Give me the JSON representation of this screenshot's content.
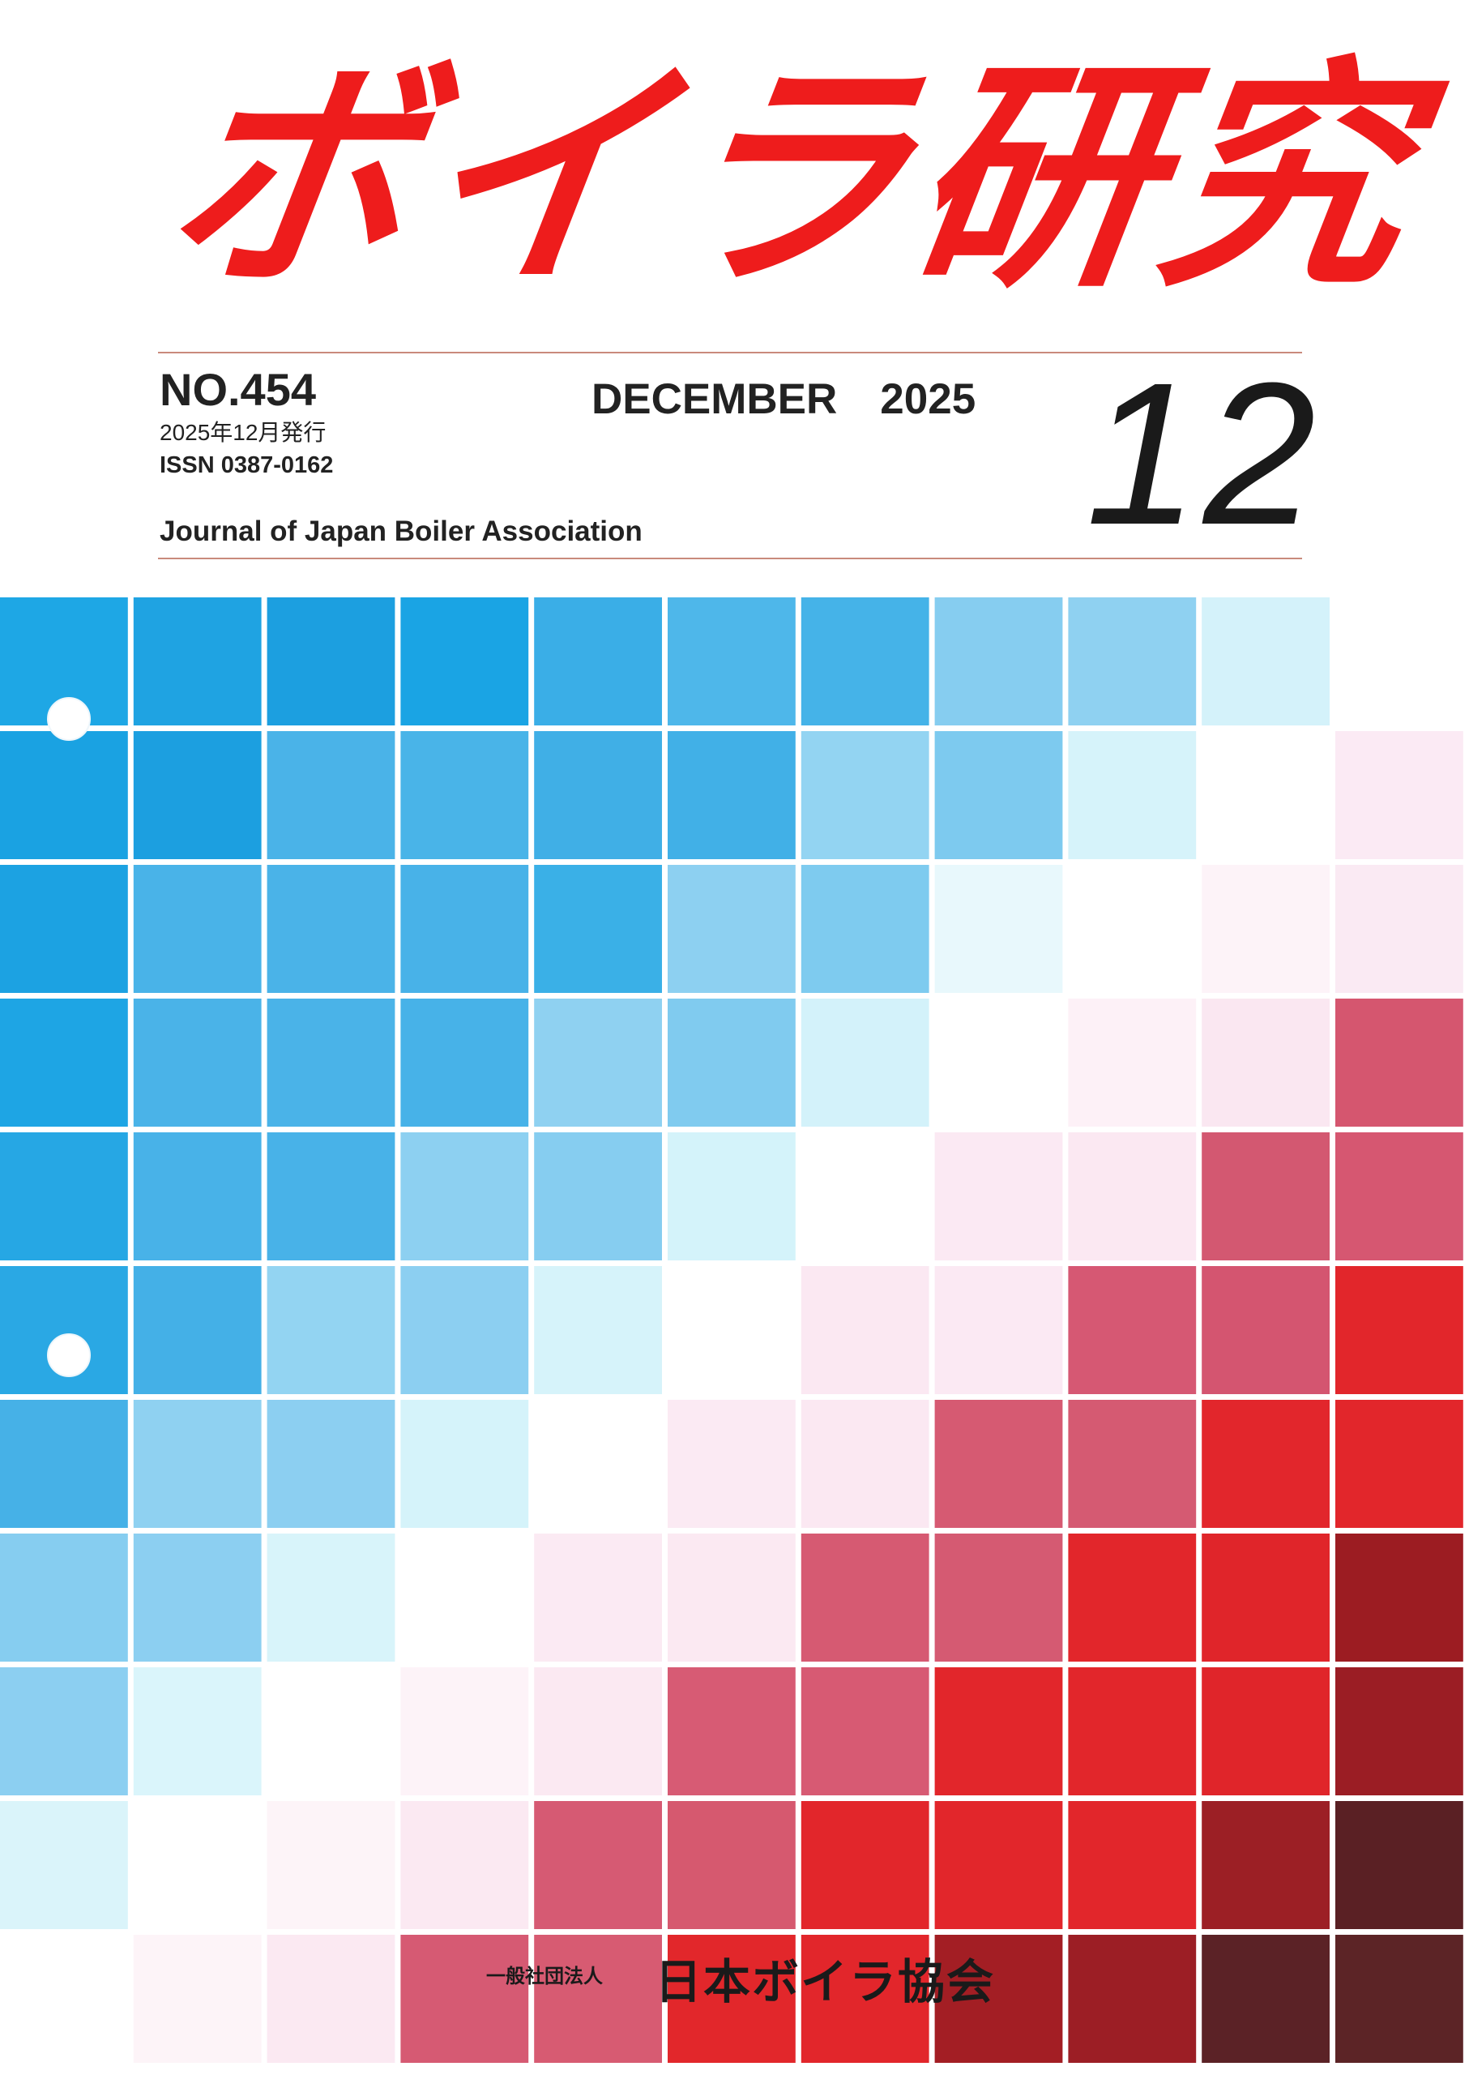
{
  "cover": {
    "title": "ボイラ研究",
    "issue_number": "NO.454",
    "issue_date_jp": "2025年12月発行",
    "issn": "ISSN 0387-0162",
    "journal_name": "Journal of Japan Boiler Association",
    "issue_month_year": "DECEMBER　2025",
    "issue_month_big": "12"
  },
  "publisher": {
    "label": "一般社団法人",
    "name": "日本ボイラ協会"
  },
  "colors": {
    "title_red": "#ee1c1c",
    "rule": "#c98a7c",
    "text_dark": "#222222"
  },
  "mosaic": {
    "rows": [
      [
        "#1ea7e5",
        "#1fa3e2",
        "#1c9fe0",
        "#1aa4e4",
        "#3aaee7",
        "#4eb7ea",
        "#45b3e8",
        "#86cdf0",
        "#8fd1f1",
        "#d4f2fa",
        "#ffffff"
      ],
      [
        "#1aa2e2",
        "#1c9fe0",
        "#4ab3e8",
        "#49b4e8",
        "#40afe6",
        "#41b0e7",
        "#93d4f2",
        "#7dcaef",
        "#d6f3fa",
        "#ffffff",
        "#fbeaf4"
      ],
      [
        "#1ca2e2",
        "#49b3e8",
        "#4ab3e8",
        "#48b2e8",
        "#3ab0e7",
        "#8dd0f1",
        "#7ecbef",
        "#e8f8fc",
        "#ffffff",
        "#fdf3f8",
        "#faeaf3"
      ],
      [
        "#1ea5e4",
        "#4ab3e8",
        "#4ab3e8",
        "#47b2e8",
        "#8fd1f1",
        "#80cbef",
        "#d3f2fa",
        "#ffffff",
        "#fdf1f7",
        "#fae7f1",
        "#d5566f"
      ],
      [
        "#26a7e4",
        "#48b2e8",
        "#48b2e8",
        "#8dd0f1",
        "#86cdf0",
        "#d4f3fa",
        "#ffffff",
        "#fbe9f3",
        "#fbe8f2",
        "#d35871",
        "#d65771"
      ],
      [
        "#2aa8e4",
        "#44b0e7",
        "#93d4f2",
        "#8ccff1",
        "#d6f3fa",
        "#ffffff",
        "#fbe8f2",
        "#fbe9f3",
        "#d65873",
        "#d45570",
        "#e2262b"
      ],
      [
        "#46b1e7",
        "#8fd1f1",
        "#8ccff1",
        "#d5f3fa",
        "#ffffff",
        "#fbeaf3",
        "#fbe8f2",
        "#d65a72",
        "#d55a72",
        "#e2262c",
        "#e2262b"
      ],
      [
        "#86cdf0",
        "#8ccff1",
        "#d8f4fa",
        "#ffffff",
        "#fbeaf3",
        "#fbe9f2",
        "#d65a72",
        "#d55a72",
        "#e2262b",
        "#e0252a",
        "#9c1c22"
      ],
      [
        "#8ccff1",
        "#daf5fb",
        "#ffffff",
        "#fdf3f8",
        "#fbe9f2",
        "#d75b74",
        "#d75a73",
        "#e2262b",
        "#e2262b",
        "#e0252a",
        "#9b1d24"
      ],
      [
        "#daf4fa",
        "#ffffff",
        "#fdf4f8",
        "#fbe9f2",
        "#d65a73",
        "#d6596f",
        "#e2262b",
        "#e2262b",
        "#e2262b",
        "#9c1f25",
        "#5a2024"
      ],
      [
        "#ffffff",
        "#fdf4f8",
        "#fbe9f2",
        "#d65a73",
        "#d75b72",
        "#e2272b",
        "#e2262b",
        "#a31e24",
        "#9c1e25",
        "#5b2226",
        "#5c2426"
      ]
    ]
  }
}
